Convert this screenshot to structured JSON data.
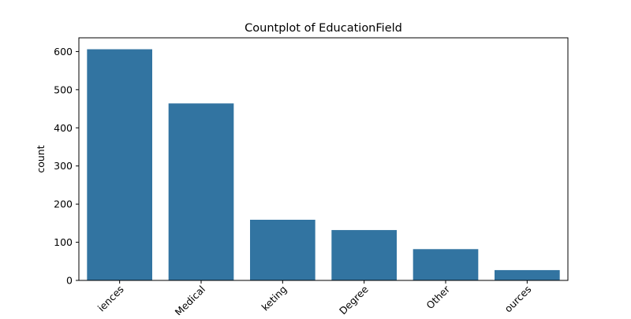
{
  "chart_data": {
    "type": "bar",
    "title": "Countplot of EducationField",
    "xlabel": "",
    "ylabel": "count",
    "categories": [
      "Life Sciences",
      "Medical",
      "Marketing",
      "Technical Degree",
      "Other",
      "Human Resources"
    ],
    "visible_tick_text": [
      "iences",
      "Medical",
      "keting",
      "Degree",
      "Other",
      "ources"
    ],
    "values": [
      606,
      464,
      159,
      132,
      82,
      27
    ],
    "ylim": [
      0,
      636
    ],
    "yticks": [
      0,
      100,
      200,
      300,
      400,
      500,
      600
    ],
    "grid": false,
    "legend": "none",
    "bar_color": "#3274a1"
  }
}
